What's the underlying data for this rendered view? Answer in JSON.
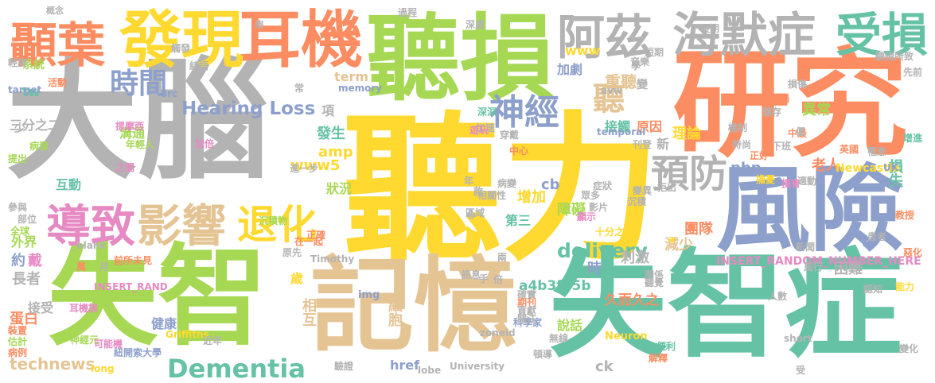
{
  "words": [
    {
      "text": "大腦",
      "color": "#b3b3b3"
    },
    {
      "text": "聽力",
      "color": "#ffd92f"
    },
    {
      "text": "研究",
      "color": "#fc8d62"
    },
    {
      "text": "失智症",
      "color": "#66c2a5"
    },
    {
      "text": "失智",
      "color": "#a6d854"
    },
    {
      "text": "記憶",
      "color": "#e5c494"
    },
    {
      "text": "風險",
      "color": "#8da0cb"
    },
    {
      "text": "聽損",
      "color": "#a6d854"
    },
    {
      "text": "耳機",
      "color": "#fc8d62"
    },
    {
      "text": "發現",
      "color": "#ffd92f"
    },
    {
      "text": "顳葉",
      "color": "#fc8d62"
    },
    {
      "text": "阿茲",
      "color": "#b3b3b3"
    },
    {
      "text": "海默症",
      "color": "#b3b3b3"
    },
    {
      "text": "受損",
      "color": "#66c2a5"
    },
    {
      "text": "導致",
      "color": "#e78ac3"
    },
    {
      "text": "影響",
      "color": "#e5c494"
    },
    {
      "text": "退化",
      "color": "#ffd92f"
    },
    {
      "text": "預防",
      "color": "#b3b3b3"
    },
    {
      "text": "神經",
      "color": "#8da0cb"
    },
    {
      "text": "時間",
      "color": "#8da0cb"
    },
    {
      "text": "聽",
      "color": "#e5c494"
    },
    {
      "text": "Dementia",
      "color": "#66c2a5"
    },
    {
      "text": "Hearing Loss",
      "color": "#8da0cb"
    },
    {
      "text": "delivery",
      "color": "#66c2a5"
    },
    {
      "text": "重聽",
      "color": "#e5c494"
    },
    {
      "text": "加劇",
      "color": "#8da0cb"
    },
    {
      "text": "www",
      "color": "#ffd92f"
    },
    {
      "text": "原因",
      "color": "#fc8d62"
    },
    {
      "text": "接觸",
      "color": "#66c2a5"
    },
    {
      "text": "理論",
      "color": "#ffd92f"
    },
    {
      "text": "異常",
      "color": "#a6d854"
    },
    {
      "text": "損失",
      "color": "#66c2a5"
    },
    {
      "text": "老人",
      "color": "#fc8d62"
    },
    {
      "text": "團隊",
      "color": "#fc8d62"
    },
    {
      "text": "減少",
      "color": "#e5c494"
    },
    {
      "text": "增加",
      "color": "#ffd92f"
    },
    {
      "text": "障礙",
      "color": "#a6d854"
    },
    {
      "text": "php",
      "color": "#8da0cb"
    },
    {
      "text": "cb",
      "color": "#8da0cb"
    },
    {
      "text": "發生",
      "color": "#66c2a5"
    },
    {
      "text": "amp",
      "color": "#ffd92f"
    },
    {
      "text": "www5",
      "color": "#ffd92f"
    },
    {
      "text": "term",
      "color": "#e5c494"
    },
    {
      "text": "tw",
      "color": "#66c2a5"
    },
    {
      "text": "系統",
      "color": "#a6d854"
    },
    {
      "text": "溝通",
      "color": "#a6d854"
    },
    {
      "text": "三分之二",
      "color": "#b3b3b3"
    },
    {
      "text": "a4b3f35b",
      "color": "#66c2a5"
    },
    {
      "text": "細胞",
      "color": "#e5c494"
    },
    {
      "text": "相互",
      "color": "#e5c494"
    },
    {
      "text": "時",
      "color": "#8da0cb"
    },
    {
      "text": "刺激",
      "color": "#b3b3b3"
    },
    {
      "text": "久而久之",
      "color": "#fc8d62"
    },
    {
      "text": "困難",
      "color": "#b3b3b3"
    },
    {
      "text": "說話",
      "color": "#a6d854"
    },
    {
      "text": "technews",
      "color": "#e5c494"
    },
    {
      "text": "蛋白",
      "color": "#fc8d62"
    },
    {
      "text": "長者",
      "color": "#b3b3b3"
    },
    {
      "text": "戴",
      "color": "#e78ac3"
    },
    {
      "text": "約",
      "color": "#8da0cb"
    },
    {
      "text": "外界",
      "color": "#a6d854"
    },
    {
      "text": "互動",
      "color": "#66c2a5"
    },
    {
      "text": "接受",
      "color": "#b3b3b3"
    },
    {
      "text": "健康",
      "color": "#8da0cb"
    },
    {
      "text": "ck",
      "color": "#b3b3b3"
    },
    {
      "text": "href",
      "color": "#8da0cb"
    },
    {
      "text": "第三",
      "color": "#66c2a5"
    },
    {
      "text": "狀況",
      "color": "#a6d854"
    },
    {
      "text": "歲",
      "color": "#ffd92f"
    },
    {
      "text": "項",
      "color": "#b3b3b3"
    },
    {
      "text": "新",
      "color": "#b3b3b3"
    },
    {
      "text": "Newcastle",
      "color": "#ffd92f"
    },
    {
      "text": "INSERT_RANDOM_NUMBER_HERE",
      "color": "#e78ac3"
    },
    {
      "text": "INSERT_RAND",
      "color": "#e78ac3"
    },
    {
      "text": "Griffiths",
      "color": "#ffd92f"
    },
    {
      "text": "Neuron",
      "color": "#ffd92f"
    },
    {
      "text": "Timothy",
      "color": "#b3b3b3"
    },
    {
      "text": "memory",
      "color": "#8da0cb"
    },
    {
      "text": "temporal",
      "color": "#8da0cb"
    },
    {
      "text": "University",
      "color": "#b3b3b3"
    },
    {
      "text": "target",
      "color": "#8da0cb"
    },
    {
      "text": "_blank",
      "color": "#b3b3b3"
    },
    {
      "text": "zoneid",
      "color": "#b3b3b3"
    },
    {
      "text": "long",
      "color": "#ffd92f"
    },
    {
      "text": "short",
      "color": "#b3b3b3"
    },
    {
      "text": "img",
      "color": "#8da0cb"
    },
    {
      "text": "lobe",
      "color": "#b3b3b3"
    },
    {
      "text": "src",
      "color": "#8da0cb"
    },
    {
      "text": "avw",
      "color": "#b3b3b3"
    },
    {
      "text": "UK",
      "color": "#8da0cb"
    },
    {
      "text": "概念",
      "color": "#b3b3b3"
    },
    {
      "text": "聽損所致",
      "color": "#b3b3b3"
    },
    {
      "text": "前所未見",
      "color": "#fc8d62"
    },
    {
      "text": "十分之一",
      "color": "#ffd92f"
    },
    {
      "text": "在一起",
      "color": "#fc8d62"
    },
    {
      "text": "進一步",
      "color": "#b3b3b3"
    },
    {
      "text": "提摩西",
      "color": "#e78ac3"
    },
    {
      "text": "年輕人",
      "color": "#a6d854"
    },
    {
      "text": "神經元",
      "color": "#a6d854"
    },
    {
      "text": "紐開索大學",
      "color": "#8da0cb"
    },
    {
      "text": "可能機",
      "color": "#e78ac3"
    },
    {
      "text": "沉積物",
      "color": "#a6d854"
    },
    {
      "text": "耳機族",
      "color": "#e78ac3"
    },
    {
      "text": "科學家",
      "color": "#8da0cb"
    },
    {
      "text": "人數",
      "color": "#b3b3b3"
    },
    {
      "text": "認知",
      "color": "#b3b3b3"
    },
    {
      "text": "能力",
      "color": "#ffd92f"
    },
    {
      "text": "變化",
      "color": "#b3b3b3"
    },
    {
      "text": "便利",
      "color": "#66c2a5"
    },
    {
      "text": "解釋",
      "color": "#fc8d62"
    },
    {
      "text": "驗證",
      "color": "#b3b3b3"
    },
    {
      "text": "無線",
      "color": "#b3b3b3"
    },
    {
      "text": "病例",
      "color": "#fc8d62"
    },
    {
      "text": "估計",
      "color": "#a6d854"
    },
    {
      "text": "裝置",
      "color": "#fc8d62"
    },
    {
      "text": "提出",
      "color": "#a6d854"
    },
    {
      "text": "病發",
      "color": "#a6d854"
    },
    {
      "text": "全球",
      "color": "#a6d854"
    },
    {
      "text": "部位",
      "color": "#b3b3b3"
    },
    {
      "text": "參與",
      "color": "#b3b3b3"
    },
    {
      "text": "少",
      "color": "#b3b3b3"
    },
    {
      "text": "活動",
      "color": "#fc8d62"
    },
    {
      "text": "輕度",
      "color": "#b3b3b3"
    },
    {
      "text": "學",
      "color": "#b3b3b3"
    },
    {
      "text": "變",
      "color": "#b3b3b3"
    },
    {
      "text": "先前",
      "color": "#b3b3b3"
    },
    {
      "text": "增進",
      "color": "#66c2a5"
    },
    {
      "text": "罹患",
      "color": "#b3b3b3"
    },
    {
      "text": "英國",
      "color": "#fc8d62"
    },
    {
      "text": "時尚",
      "color": "#b3b3b3"
    },
    {
      "text": "下班",
      "color": "#b3b3b3"
    },
    {
      "text": "刊登",
      "color": "#b3b3b3"
    },
    {
      "text": "新聞",
      "color": "#b3b3b3"
    },
    {
      "text": "風行",
      "color": "#b3b3b3"
    },
    {
      "text": "教授",
      "color": "#fc8d62"
    },
    {
      "text": "患者",
      "color": "#b3b3b3"
    },
    {
      "text": "惡化",
      "color": "#fc8d62"
    },
    {
      "text": "近年",
      "color": "#b3b3b3"
    },
    {
      "text": "手",
      "color": "#b3b3b3"
    },
    {
      "text": "訊息",
      "color": "#b3b3b3"
    },
    {
      "text": "關係",
      "color": "#b3b3b3"
    },
    {
      "text": "聽覺",
      "color": "#b3b3b3"
    },
    {
      "text": "確實",
      "color": "#b3b3b3"
    },
    {
      "text": "期刊",
      "color": "#fc8d62"
    },
    {
      "text": "貢獻",
      "color": "#b3b3b3"
    },
    {
      "text": "關注",
      "color": "#b3b3b3"
    },
    {
      "text": "原先",
      "color": "#b3b3b3"
    },
    {
      "text": "正確",
      "color": "#fc8d62"
    },
    {
      "text": "病變",
      "color": "#b3b3b3"
    },
    {
      "text": "區域",
      "color": "#b3b3b3"
    },
    {
      "text": "相關性",
      "color": "#b3b3b3"
    },
    {
      "text": "眾多",
      "color": "#b3b3b3"
    },
    {
      "text": "顯示",
      "color": "#e78ac3"
    },
    {
      "text": "影片",
      "color": "#b3b3b3"
    },
    {
      "text": "拒出",
      "color": "#b3b3b3"
    },
    {
      "text": "沉積",
      "color": "#b3b3b3"
    },
    {
      "text": "擔憂",
      "color": "#ffd92f"
    },
    {
      "text": "損害",
      "color": "#e78ac3"
    },
    {
      "text": "適動",
      "color": "#b3b3b3"
    },
    {
      "text": "過程",
      "color": "#b3b3b3"
    },
    {
      "text": "深處",
      "color": "#b3b3b3"
    },
    {
      "text": "音樂",
      "color": "#b3b3b3"
    },
    {
      "text": "長期",
      "color": "#b3b3b3"
    },
    {
      "text": "損傷",
      "color": "#b3b3b3"
    },
    {
      "text": "耳蝸",
      "color": "#fc8d62"
    },
    {
      "text": "儲存",
      "color": "#b3b3b3"
    },
    {
      "text": "正好",
      "color": "#fc8d62"
    },
    {
      "text": "機制",
      "color": "#b3b3b3"
    },
    {
      "text": "深深",
      "color": "#66c2a5"
    },
    {
      "text": "加速",
      "color": "#b3b3b3"
    },
    {
      "text": "遊玩",
      "color": "#e78ac3"
    },
    {
      "text": "穿戴",
      "color": "#b3b3b3"
    },
    {
      "text": "中心",
      "color": "#fc8d62"
    },
    {
      "text": "結語",
      "color": "#b3b3b3"
    },
    {
      "text": "觸發",
      "color": "#b3b3b3"
    },
    {
      "text": "加倍",
      "color": "#e78ac3"
    },
    {
      "text": "之間",
      "color": "#e78ac3"
    },
    {
      "text": "症狀",
      "color": "#b3b3b3"
    },
    {
      "text": "變異",
      "color": "#b3b3b3"
    },
    {
      "text": "萬",
      "color": "#fc8d62"
    },
    {
      "text": "月",
      "color": "#b3b3b3"
    },
    {
      "text": "年",
      "color": "#b3b3b3"
    },
    {
      "text": "心",
      "color": "#b3b3b3"
    },
    {
      "text": "款",
      "color": "#b3b3b3"
    },
    {
      "text": "串",
      "color": "#b3b3b3"
    },
    {
      "text": "常",
      "color": "#b3b3b3"
    },
    {
      "text": "倍",
      "color": "#b3b3b3"
    },
    {
      "text": "兩",
      "color": "#b3b3b3"
    },
    {
      "text": "中最",
      "color": "#fc8d62"
    },
    {
      "text": "便",
      "color": "#b3b3b3"
    },
    {
      "text": "受",
      "color": "#b3b3b3"
    },
    {
      "text": "短期",
      "color": "#b3b3b3"
    },
    {
      "text": "頓導",
      "color": "#b3b3b3"
    },
    {
      "text": "a",
      "color": "#ffd92f"
    }
  ]
}
